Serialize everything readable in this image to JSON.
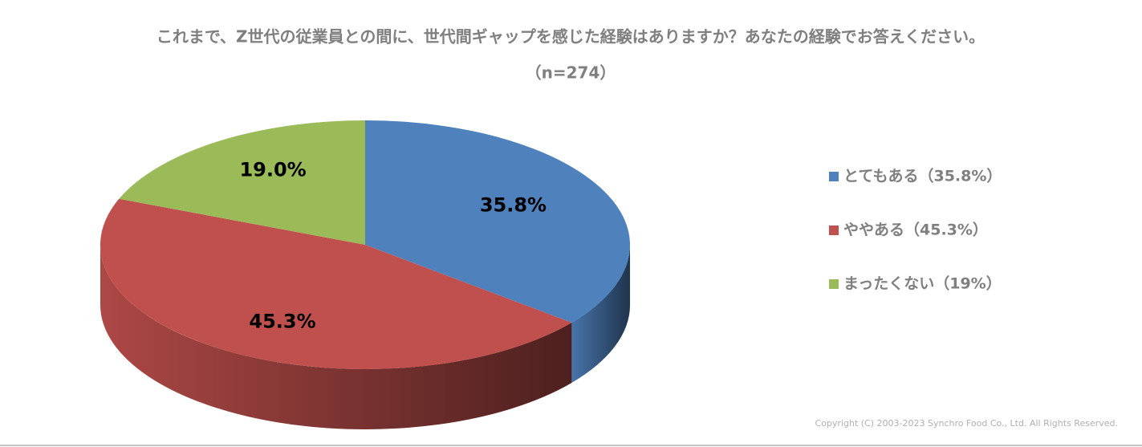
{
  "chart_data": {
    "type": "pie",
    "title": "これまで、Z世代の従業員との間に、世代間ギャップを感じた経験はありますか？あなたの経験でお答えください。",
    "subtitle": "（n=274）",
    "categories": [
      "とてもある（35.8%）",
      "ややある（45.3%）",
      "まったくない（19%）"
    ],
    "values": [
      35.8,
      45.3,
      19.0
    ],
    "value_labels": [
      "35.8%",
      "45.3%",
      "19.0%"
    ],
    "colors": [
      "#4f81bd",
      "#c0504d",
      "#9bbb59"
    ],
    "legend": "right",
    "copyright": "Copyright (C) 2003-2023   Synchro Food Co., Ltd. All Rights Reserved."
  }
}
